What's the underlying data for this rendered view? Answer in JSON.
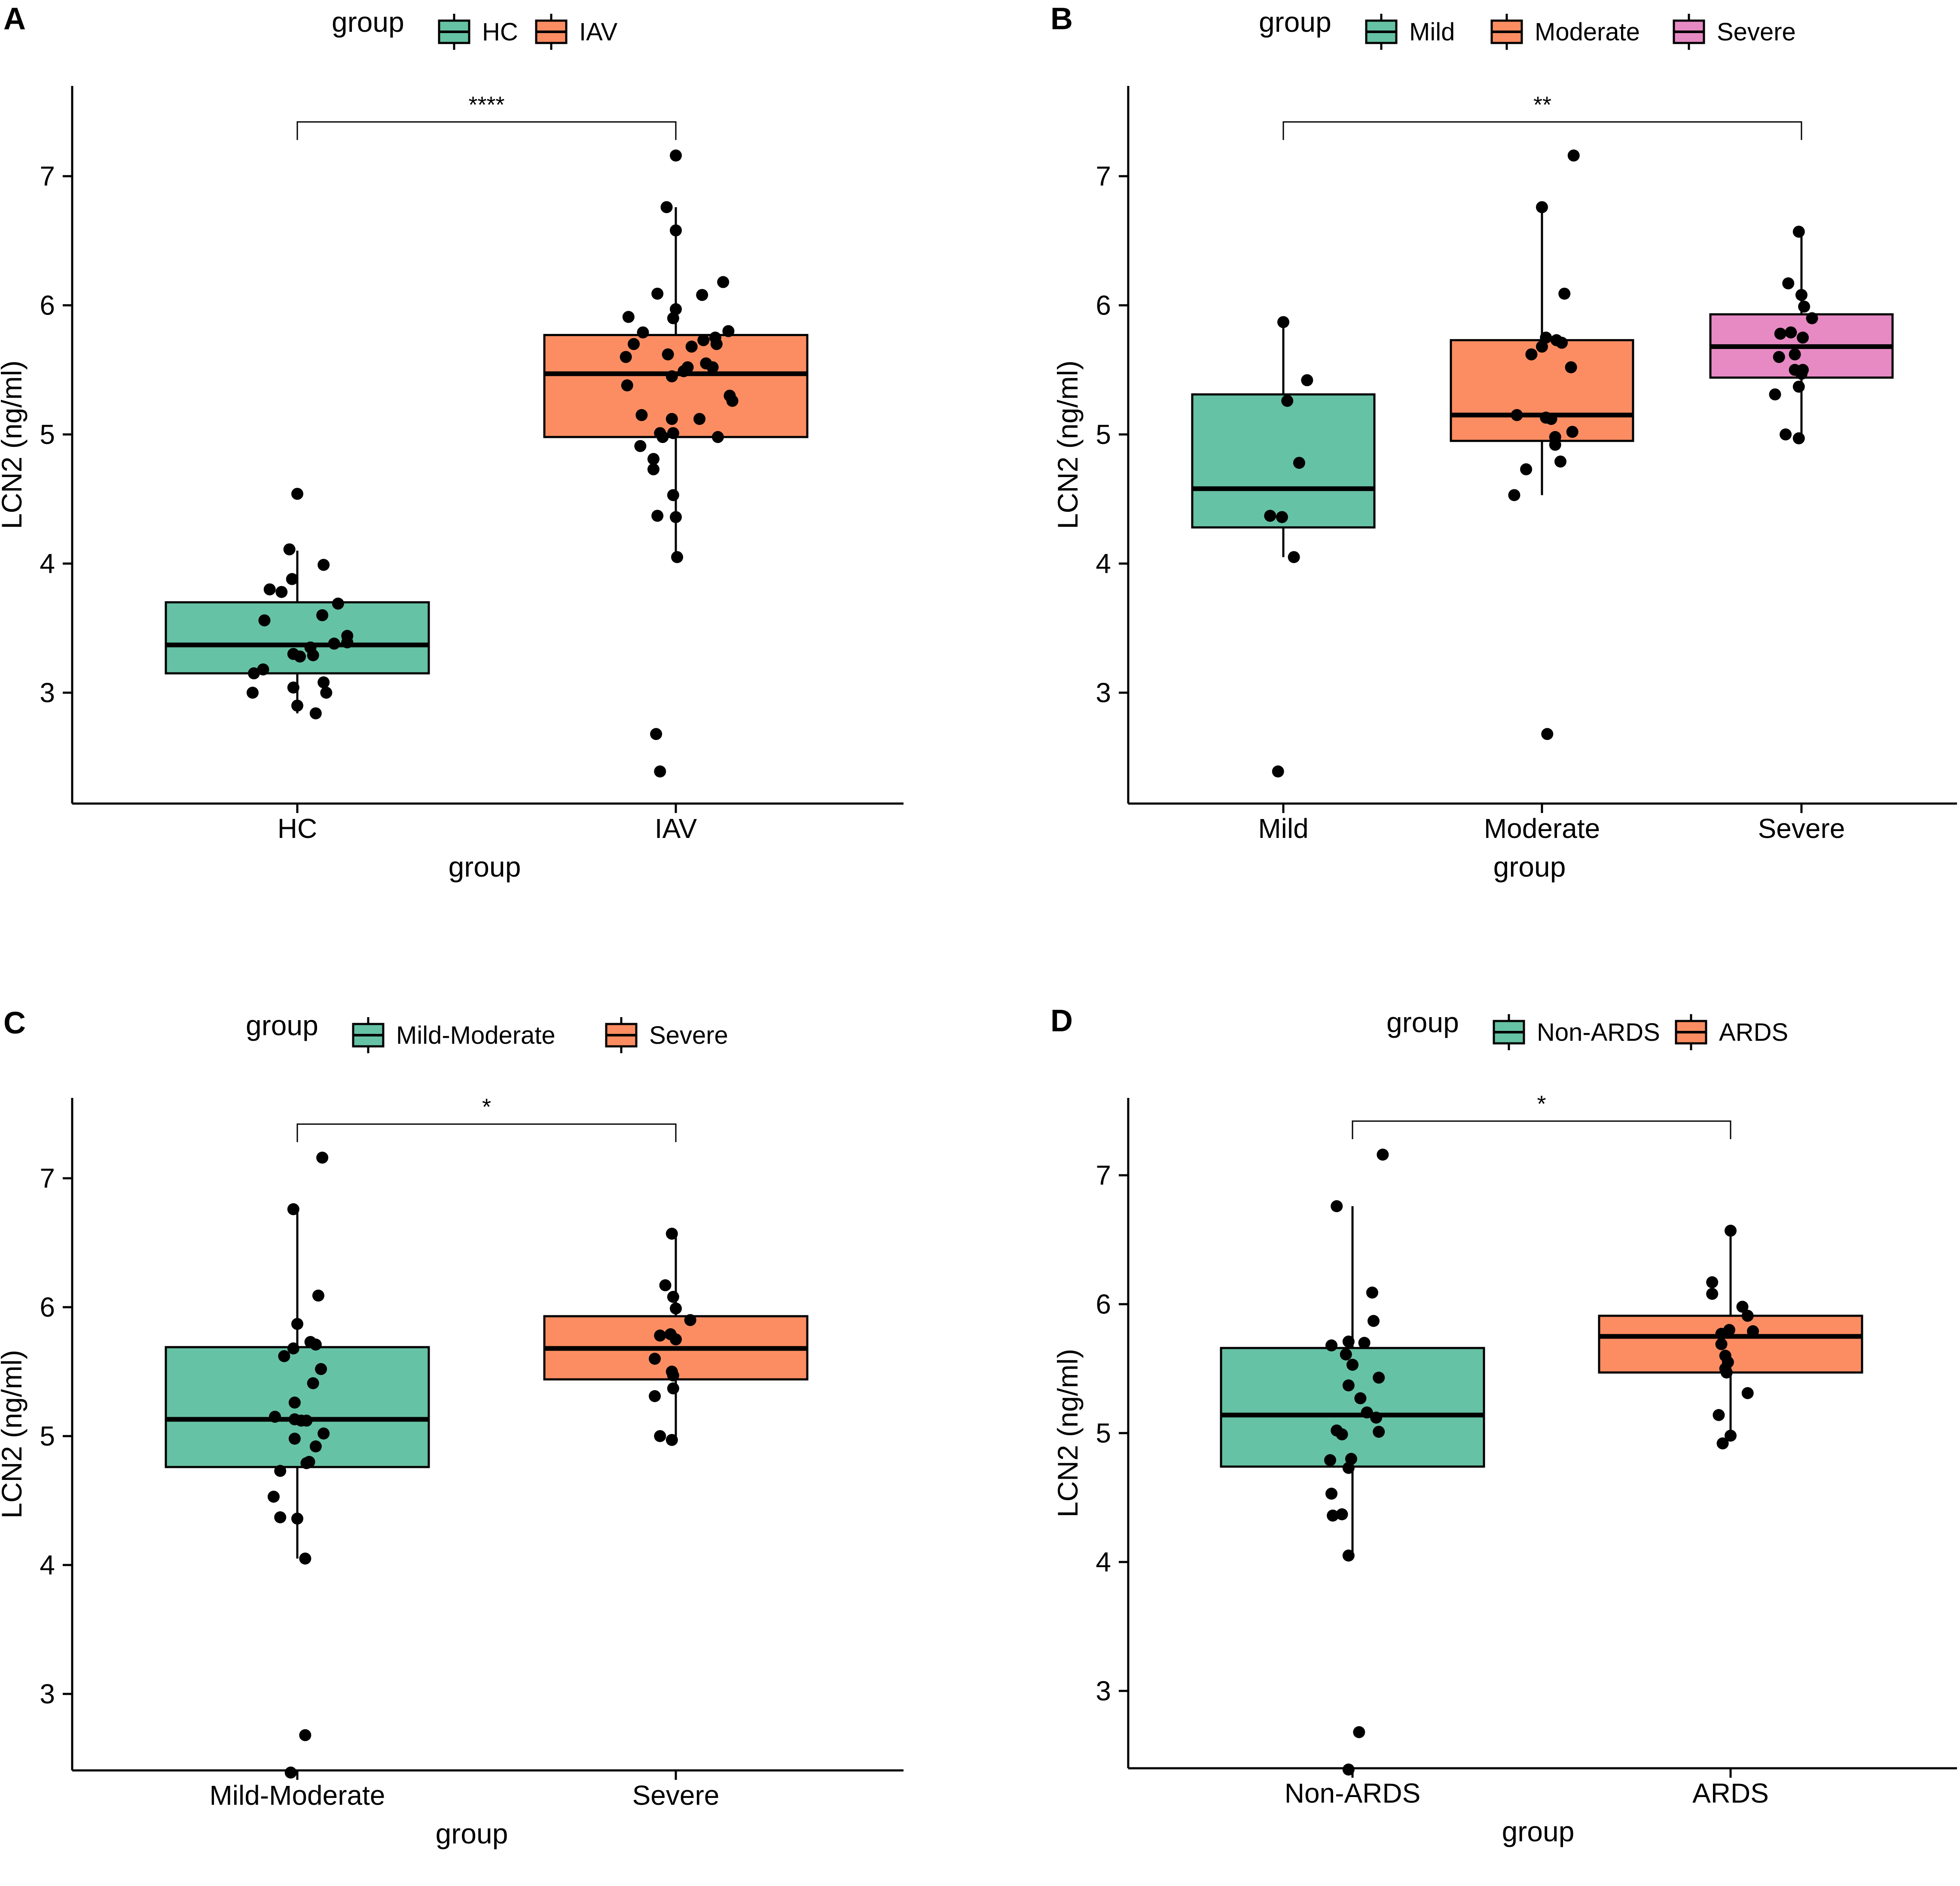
{
  "colors": {
    "green": "#66c2a5",
    "orange": "#fc8d62",
    "pink": "#e78ac3",
    "line": "#000000"
  },
  "chart_data": [
    {
      "panel": "A",
      "type": "box",
      "legend_title": "group",
      "xlabel": "group",
      "ylabel": "LCN2  (ng/ml)",
      "ylim": [
        2.25,
        7.55
      ],
      "yticks": [
        3,
        4,
        5,
        6,
        7
      ],
      "significance": {
        "label": "****",
        "from": 0,
        "to": 1,
        "y": 7.42
      },
      "groups": [
        {
          "name": "HC",
          "color": "#66c2a5",
          "stats": {
            "min": 2.84,
            "q1": 3.15,
            "median": 3.37,
            "q3": 3.7,
            "max": 4.1
          },
          "points": [
            [
              -0.34,
              3.0
            ],
            [
              -0.33,
              3.15
            ],
            [
              -0.26,
              3.18
            ],
            [
              -0.25,
              3.56
            ],
            [
              -0.21,
              3.8
            ],
            [
              -0.12,
              3.78
            ],
            [
              -0.06,
              4.11
            ],
            [
              -0.04,
              3.88
            ],
            [
              -0.03,
              3.3
            ],
            [
              -0.03,
              3.04
            ],
            [
              0.0,
              2.9
            ],
            [
              0.0,
              4.54
            ],
            [
              0.02,
              3.28
            ],
            [
              0.1,
              3.35
            ],
            [
              0.12,
              3.29
            ],
            [
              0.14,
              2.84
            ],
            [
              0.19,
              3.6
            ],
            [
              0.2,
              3.08
            ],
            [
              0.22,
              3.0
            ],
            [
              0.2,
              3.99
            ],
            [
              0.28,
              3.38
            ],
            [
              0.31,
              3.69
            ],
            [
              0.38,
              3.39
            ],
            [
              0.38,
              3.44
            ]
          ]
        },
        {
          "name": "IAV",
          "color": "#fc8d62",
          "stats": {
            "min": 4.05,
            "q1": 4.98,
            "median": 5.47,
            "q3": 5.77,
            "max": 6.76
          },
          "points": [
            [
              -0.38,
              5.6
            ],
            [
              -0.37,
              5.38
            ],
            [
              -0.36,
              5.91
            ],
            [
              -0.32,
              5.7
            ],
            [
              -0.27,
              4.91
            ],
            [
              -0.26,
              5.15
            ],
            [
              -0.25,
              5.79
            ],
            [
              -0.17,
              4.73
            ],
            [
              -0.17,
              4.81
            ],
            [
              -0.14,
              6.09
            ],
            [
              -0.14,
              4.37
            ],
            [
              -0.12,
              5.01
            ],
            [
              -0.1,
              4.98
            ],
            [
              -0.07,
              6.76
            ],
            [
              -0.06,
              5.62
            ],
            [
              -0.03,
              5.12
            ],
            [
              -0.02,
              5.9
            ],
            [
              -0.03,
              5.45
            ],
            [
              -0.02,
              5.01
            ],
            [
              -0.02,
              4.53
            ],
            [
              0.0,
              7.16
            ],
            [
              0.0,
              5.97
            ],
            [
              0.0,
              6.58
            ],
            [
              0.0,
              4.36
            ],
            [
              0.01,
              4.05
            ],
            [
              0.06,
              5.49
            ],
            [
              0.09,
              5.52
            ],
            [
              0.12,
              5.68
            ],
            [
              0.18,
              5.12
            ],
            [
              0.23,
              5.55
            ],
            [
              0.21,
              5.73
            ],
            [
              0.2,
              6.08
            ],
            [
              0.28,
              5.52
            ],
            [
              0.32,
              4.98
            ],
            [
              0.3,
              5.75
            ],
            [
              0.31,
              5.7
            ],
            [
              0.36,
              6.18
            ],
            [
              0.4,
              5.8
            ],
            [
              0.41,
              5.3
            ],
            [
              0.43,
              5.26
            ],
            [
              -0.15,
              2.68
            ],
            [
              -0.12,
              2.39
            ]
          ]
        }
      ]
    },
    {
      "panel": "B",
      "type": "box",
      "legend_title": "group",
      "xlabel": "group",
      "ylabel": "LCN2  (ng/ml)",
      "ylim": [
        2.25,
        7.55
      ],
      "yticks": [
        3,
        4,
        5,
        6,
        7
      ],
      "significance": {
        "label": "**",
        "from": 0,
        "to": 2,
        "y": 7.42
      },
      "groups": [
        {
          "name": "Mild",
          "color": "#66c2a5",
          "stats": {
            "min": 4.05,
            "q1": 4.28,
            "median": 4.58,
            "q3": 5.31,
            "max": 5.87
          },
          "points": [
            [
              -0.04,
              2.39
            ],
            [
              -0.1,
              4.37
            ],
            [
              -0.01,
              4.36
            ],
            [
              0.03,
              5.26
            ],
            [
              0.0,
              5.87
            ],
            [
              0.08,
              4.05
            ],
            [
              0.12,
              4.78
            ],
            [
              0.18,
              5.42
            ]
          ]
        },
        {
          "name": "Moderate",
          "color": "#fc8d62",
          "stats": {
            "min": 4.53,
            "q1": 4.95,
            "median": 5.15,
            "q3": 5.73,
            "max": 6.76
          },
          "points": [
            [
              -0.21,
              4.53
            ],
            [
              -0.19,
              5.15
            ],
            [
              -0.12,
              4.73
            ],
            [
              -0.08,
              5.62
            ],
            [
              0.0,
              5.68
            ],
            [
              0.0,
              6.76
            ],
            [
              0.03,
              5.75
            ],
            [
              0.03,
              5.13
            ],
            [
              0.04,
              2.68
            ],
            [
              0.07,
              5.12
            ],
            [
              0.1,
              4.98
            ],
            [
              0.1,
              4.92
            ],
            [
              0.11,
              5.73
            ],
            [
              0.14,
              4.79
            ],
            [
              0.15,
              5.71
            ],
            [
              0.17,
              6.09
            ],
            [
              0.22,
              5.52
            ],
            [
              0.23,
              5.02
            ],
            [
              0.24,
              7.16
            ]
          ]
        },
        {
          "name": "Severe",
          "color": "#e78ac3",
          "stats": {
            "min": 4.97,
            "q1": 5.44,
            "median": 5.68,
            "q3": 5.93,
            "max": 6.57
          },
          "points": [
            [
              -0.2,
              5.31
            ],
            [
              -0.17,
              5.6
            ],
            [
              -0.16,
              5.78
            ],
            [
              -0.12,
              5.0
            ],
            [
              -0.1,
              6.17
            ],
            [
              -0.08,
              5.79
            ],
            [
              -0.05,
              5.5
            ],
            [
              -0.05,
              5.62
            ],
            [
              -0.02,
              5.37
            ],
            [
              -0.02,
              4.97
            ],
            [
              -0.02,
              6.57
            ],
            [
              0.0,
              5.47
            ],
            [
              0.01,
              5.75
            ],
            [
              0.0,
              6.08
            ],
            [
              0.01,
              5.5
            ],
            [
              0.02,
              5.99
            ],
            [
              0.08,
              5.9
            ]
          ]
        }
      ]
    },
    {
      "panel": "C",
      "type": "box",
      "legend_title": "group",
      "xlabel": "group",
      "ylabel": "LCN2  (ng/ml)",
      "ylim": [
        2.25,
        7.55
      ],
      "yticks": [
        3,
        4,
        5,
        6,
        7
      ],
      "significance": {
        "label": "*",
        "from": 0,
        "to": 1,
        "y": 7.42
      },
      "groups": [
        {
          "name": "Mild-Moderate",
          "color": "#66c2a5",
          "stats": {
            "min": 4.05,
            "q1": 4.76,
            "median": 5.13,
            "q3": 5.69,
            "max": 6.76
          },
          "points": [
            [
              -0.18,
              4.53
            ],
            [
              -0.17,
              5.15
            ],
            [
              -0.13,
              4.37
            ],
            [
              -0.13,
              4.73
            ],
            [
              -0.1,
              5.62
            ],
            [
              -0.05,
              2.39
            ],
            [
              -0.03,
              5.68
            ],
            [
              -0.03,
              6.76
            ],
            [
              -0.02,
              5.26
            ],
            [
              -0.02,
              4.98
            ],
            [
              -0.02,
              5.13
            ],
            [
              0.0,
              5.87
            ],
            [
              0.0,
              4.36
            ],
            [
              0.03,
              5.12
            ],
            [
              0.06,
              4.05
            ],
            [
              0.06,
              2.68
            ],
            [
              0.07,
              5.12
            ],
            [
              0.07,
              4.79
            ],
            [
              0.09,
              4.8
            ],
            [
              0.1,
              5.73
            ],
            [
              0.12,
              5.41
            ],
            [
              0.14,
              4.92
            ],
            [
              0.14,
              5.71
            ],
            [
              0.16,
              6.09
            ],
            [
              0.18,
              5.52
            ],
            [
              0.2,
              5.02
            ],
            [
              0.19,
              7.16
            ]
          ]
        },
        {
          "name": "Severe",
          "color": "#fc8d62",
          "stats": {
            "min": 4.97,
            "q1": 5.44,
            "median": 5.68,
            "q3": 5.93,
            "max": 6.57
          },
          "points": [
            [
              -0.16,
              5.31
            ],
            [
              -0.16,
              5.6
            ],
            [
              -0.12,
              5.78
            ],
            [
              -0.12,
              5.0
            ],
            [
              -0.08,
              6.17
            ],
            [
              -0.04,
              5.79
            ],
            [
              -0.03,
              5.5
            ],
            [
              -0.03,
              6.57
            ],
            [
              -0.03,
              4.97
            ],
            [
              -0.02,
              5.37
            ],
            [
              -0.02,
              5.47
            ],
            [
              -0.02,
              6.08
            ],
            [
              0.0,
              5.75
            ],
            [
              0.0,
              5.99
            ],
            [
              0.11,
              5.9
            ]
          ]
        }
      ]
    },
    {
      "panel": "D",
      "type": "box",
      "legend_title": "group",
      "xlabel": "group",
      "ylabel": "LCN2  (ng/ml)",
      "ylim": [
        2.25,
        7.55
      ],
      "yticks": [
        3,
        4,
        5,
        6,
        7
      ],
      "significance": {
        "label": "*",
        "from": 0,
        "to": 1,
        "y": 7.42
      },
      "groups": [
        {
          "name": "Non-ARDS",
          "color": "#66c2a5",
          "stats": {
            "min": 4.05,
            "q1": 4.74,
            "median": 5.14,
            "q3": 5.66,
            "max": 6.76
          },
          "points": [
            [
              -0.16,
              4.53
            ],
            [
              -0.15,
              4.36
            ],
            [
              -0.17,
              4.79
            ],
            [
              -0.16,
              5.68
            ],
            [
              -0.12,
              5.02
            ],
            [
              -0.12,
              6.76
            ],
            [
              -0.08,
              4.37
            ],
            [
              -0.08,
              4.99
            ],
            [
              -0.05,
              5.61
            ],
            [
              -0.03,
              5.71
            ],
            [
              -0.03,
              5.37
            ],
            [
              -0.03,
              4.73
            ],
            [
              -0.03,
              4.05
            ],
            [
              -0.03,
              2.39
            ],
            [
              -0.01,
              4.8
            ],
            [
              0.0,
              5.53
            ],
            [
              0.06,
              5.27
            ],
            [
              0.05,
              2.68
            ],
            [
              0.09,
              5.7
            ],
            [
              0.11,
              5.16
            ],
            [
              0.15,
              6.09
            ],
            [
              0.16,
              5.87
            ],
            [
              0.18,
              5.12
            ],
            [
              0.2,
              5.43
            ],
            [
              0.2,
              5.01
            ],
            [
              0.23,
              7.16
            ]
          ]
        },
        {
          "name": "ARDS",
          "color": "#fc8d62",
          "stats": {
            "min": 4.97,
            "q1": 5.47,
            "median": 5.75,
            "q3": 5.91,
            "max": 6.57
          },
          "points": [
            [
              -0.14,
              6.17
            ],
            [
              -0.14,
              6.08
            ],
            [
              -0.09,
              5.14
            ],
            [
              -0.06,
              4.92
            ],
            [
              -0.07,
              5.69
            ],
            [
              -0.07,
              5.77
            ],
            [
              -0.04,
              5.6
            ],
            [
              -0.04,
              5.5
            ],
            [
              -0.03,
              5.47
            ],
            [
              -0.02,
              5.55
            ],
            [
              -0.01,
              5.8
            ],
            [
              0.0,
              6.57
            ],
            [
              0.0,
              4.98
            ],
            [
              0.09,
              5.98
            ],
            [
              0.13,
              5.91
            ],
            [
              0.13,
              5.31
            ],
            [
              0.17,
              5.79
            ]
          ]
        }
      ]
    }
  ]
}
